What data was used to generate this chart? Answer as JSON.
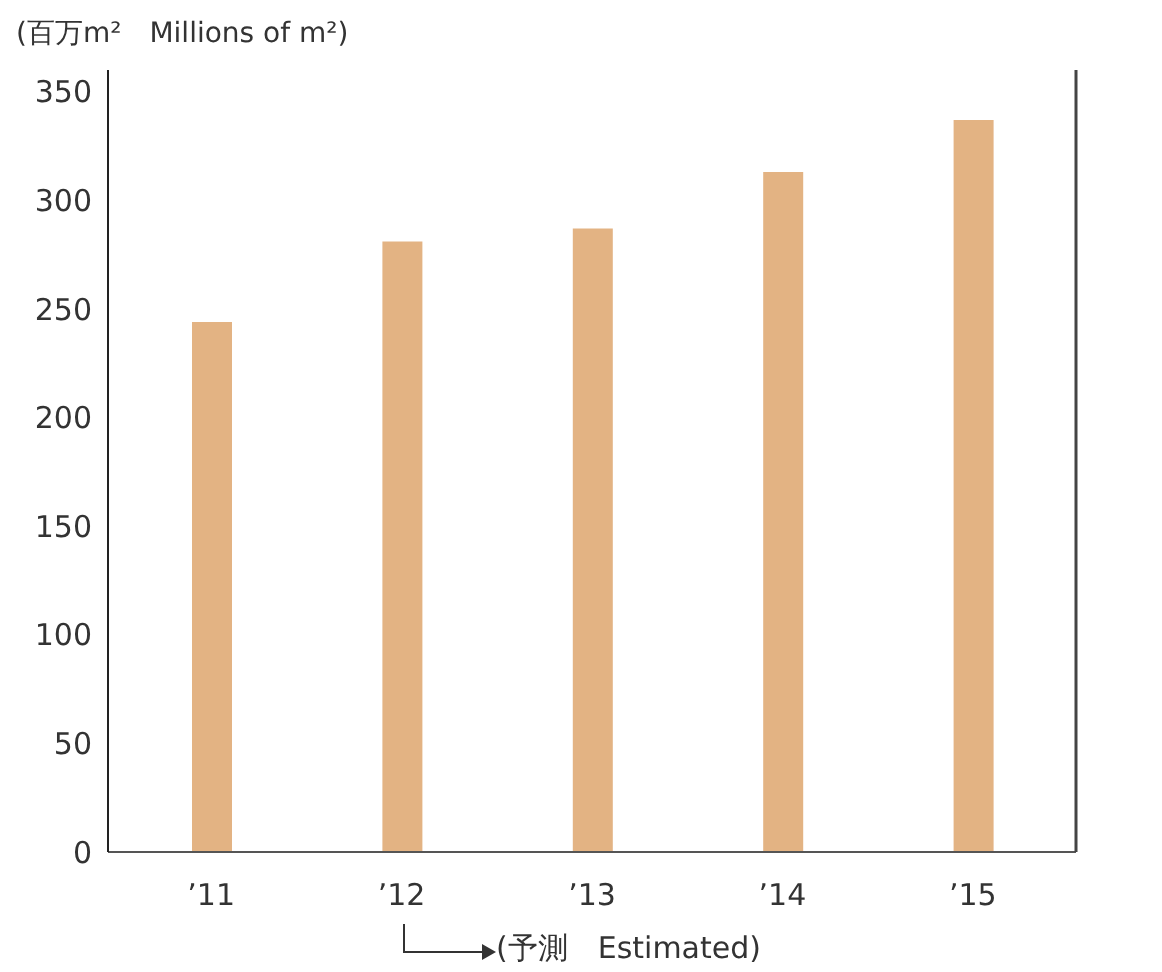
{
  "chart_data": {
    "type": "bar",
    "ylabel": "(百万m²　Millions of m²)",
    "categories": [
      "’11",
      "’12",
      "’13",
      "’14",
      "’15"
    ],
    "values": [
      244,
      281,
      287,
      313,
      337
    ],
    "color": "#e3b383",
    "ylim": [
      0,
      360
    ],
    "yticks": [
      0,
      50,
      100,
      150,
      200,
      250,
      300,
      350
    ],
    "annotations": [
      "(予測　Estimated)"
    ]
  }
}
